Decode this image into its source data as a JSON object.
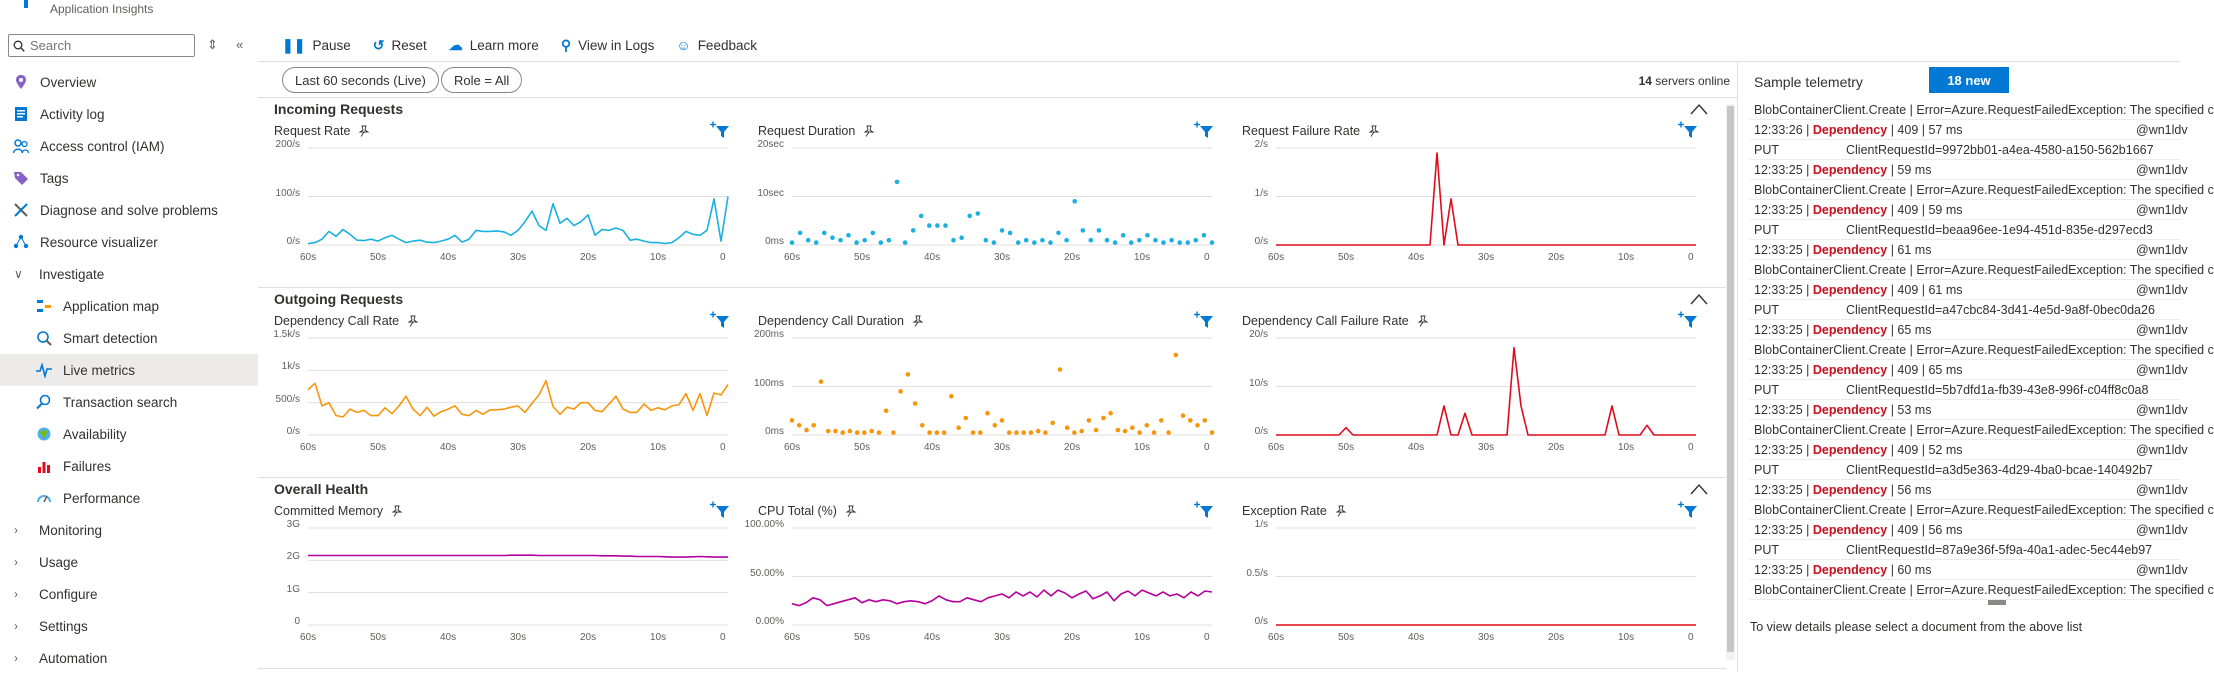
{
  "app": {
    "subtitle": "Application Insights"
  },
  "search": {
    "placeholder": "Search"
  },
  "nav": {
    "items": [
      {
        "label": "Overview"
      },
      {
        "label": "Activity log"
      },
      {
        "label": "Access control (IAM)"
      },
      {
        "label": "Tags"
      },
      {
        "label": "Diagnose and solve problems"
      },
      {
        "label": "Resource visualizer"
      },
      {
        "label": "Investigate"
      },
      {
        "label": "Application map"
      },
      {
        "label": "Smart detection"
      },
      {
        "label": "Live metrics"
      },
      {
        "label": "Transaction search"
      },
      {
        "label": "Availability"
      },
      {
        "label": "Failures"
      },
      {
        "label": "Performance"
      },
      {
        "label": "Monitoring"
      },
      {
        "label": "Usage"
      },
      {
        "label": "Configure"
      },
      {
        "label": "Settings"
      },
      {
        "label": "Automation"
      }
    ]
  },
  "toolbar": {
    "pause": "Pause",
    "reset": "Reset",
    "learn": "Learn more",
    "logs": "View in Logs",
    "feedback": "Feedback"
  },
  "filters": {
    "time": "Last 60 seconds (Live)",
    "role": "Role = All"
  },
  "servers": {
    "count": "14",
    "label": "servers online"
  },
  "sections": {
    "incoming": "Incoming Requests",
    "outgoing": "Outgoing Requests",
    "health": "Overall Health"
  },
  "x_ticks": [
    "60s",
    "50s",
    "40s",
    "30s",
    "20s",
    "10s",
    "0"
  ],
  "charts": {
    "request_rate": {
      "title": "Request Rate",
      "y_ticks": [
        "200/s",
        "100/s",
        "0/s"
      ]
    },
    "request_duration": {
      "title": "Request Duration",
      "y_ticks": [
        "20sec",
        "10sec",
        "0ms"
      ]
    },
    "request_failure_rate": {
      "title": "Request Failure Rate",
      "y_ticks": [
        "2/s",
        "1/s",
        "0/s"
      ]
    },
    "dependency_call_rate": {
      "title": "Dependency Call Rate",
      "y_ticks": [
        "1.5k/s",
        "1k/s",
        "500/s",
        "0/s"
      ]
    },
    "dependency_call_duration": {
      "title": "Dependency Call Duration",
      "y_ticks": [
        "200ms",
        "100ms",
        "0ms"
      ]
    },
    "dependency_failure_rate": {
      "title": "Dependency Call Failure Rate",
      "y_ticks": [
        "20/s",
        "10/s",
        "0/s"
      ]
    },
    "committed_memory": {
      "title": "Committed Memory",
      "y_ticks": [
        "3G",
        "2G",
        "1G",
        "0"
      ]
    },
    "cpu_total": {
      "title": "CPU Total (%)",
      "y_ticks": [
        "100.00%",
        "50.00%",
        "0.00%"
      ]
    },
    "exception_rate": {
      "title": "Exception Rate",
      "y_ticks": [
        "1/s",
        "0.5/s",
        "0/s"
      ]
    }
  },
  "colors": {
    "incoming": "#1ab0e0",
    "outgoing": "#f7960b",
    "failure": "#e00b1c",
    "health": "#b4009e",
    "accent": "#0078d4"
  },
  "chart_data": [
    {
      "type": "line",
      "title": "Request Rate",
      "ylim": [
        0,
        200
      ],
      "x": [
        60,
        59,
        58,
        57,
        56,
        55,
        54,
        53,
        52,
        51,
        50,
        49,
        48,
        47,
        46,
        45,
        44,
        43,
        42,
        41,
        40,
        39,
        38,
        37,
        36,
        35,
        34,
        33,
        32,
        31,
        30,
        29,
        28,
        27,
        26,
        25,
        24,
        23,
        22,
        21,
        20,
        19,
        18,
        17,
        16,
        15,
        14,
        13,
        12,
        11,
        10,
        9,
        8,
        7,
        6,
        5,
        4,
        3,
        2,
        1,
        0
      ],
      "series": [
        {
          "values": [
            3,
            5,
            12,
            28,
            18,
            32,
            22,
            10,
            9,
            12,
            8,
            15,
            20,
            12,
            5,
            8,
            10,
            6,
            5,
            8,
            12,
            20,
            6,
            12,
            30,
            28,
            28,
            29,
            27,
            20,
            30,
            48,
            70,
            40,
            30,
            85,
            45,
            55,
            40,
            48,
            62,
            20,
            32,
            30,
            35,
            30,
            10,
            12,
            8,
            5,
            5,
            3,
            5,
            15,
            28,
            22,
            20,
            30,
            95,
            8,
            100
          ]
        }
      ]
    },
    {
      "type": "scatter",
      "title": "Request Duration",
      "ylim": [
        0,
        20
      ],
      "series": [
        {
          "values": [
            0.5,
            2.5,
            1,
            0.5,
            2.5,
            1.5,
            1,
            2,
            0.5,
            1,
            2.5,
            0.5,
            1,
            13,
            0.5,
            3,
            6,
            4,
            4,
            4,
            1,
            1.5,
            6,
            6.5,
            1,
            0.5,
            3,
            2.5,
            0.5,
            1,
            0.5,
            1,
            0.5,
            2.5,
            1,
            9,
            3,
            1,
            3,
            1,
            0.5,
            2,
            0.5,
            1,
            2,
            1,
            0.5,
            1,
            0.5,
            0.5,
            1,
            2,
            0.5
          ]
        }
      ]
    },
    {
      "type": "line",
      "title": "Request Failure Rate",
      "ylim": [
        0,
        2
      ],
      "series": [
        {
          "values": [
            0,
            0,
            0,
            0,
            0,
            0,
            0,
            0,
            0,
            0,
            0,
            0,
            0,
            0,
            0,
            0,
            0,
            0,
            0,
            0,
            0,
            0,
            0,
            1.9,
            0,
            0.95,
            0,
            0,
            0,
            0,
            0,
            0,
            0,
            0,
            0,
            0,
            0,
            0,
            0,
            0,
            0,
            0,
            0,
            0,
            0,
            0,
            0,
            0,
            0,
            0,
            0,
            0,
            0,
            0,
            0,
            0,
            0,
            0,
            0,
            0,
            0
          ]
        }
      ]
    },
    {
      "type": "line",
      "title": "Dependency Call Rate",
      "ylim": [
        0,
        1500
      ],
      "series": [
        {
          "values": [
            700,
            800,
            450,
            500,
            300,
            280,
            400,
            350,
            380,
            300,
            300,
            420,
            330,
            450,
            600,
            400,
            300,
            430,
            290,
            360,
            400,
            450,
            320,
            300,
            380,
            320,
            390,
            390,
            400,
            430,
            450,
            350,
            490,
            620,
            840,
            440,
            320,
            430,
            400,
            500,
            500,
            380,
            360,
            480,
            600,
            400,
            350,
            350,
            480,
            380,
            420,
            390,
            450,
            470,
            640,
            380,
            640,
            300,
            650,
            620,
            780
          ]
        }
      ]
    },
    {
      "type": "scatter",
      "title": "Dependency Call Duration",
      "ylim": [
        0,
        200
      ],
      "series": [
        {
          "values": [
            30,
            20,
            10,
            20,
            110,
            8,
            8,
            5,
            8,
            5,
            5,
            8,
            5,
            50,
            5,
            90,
            125,
            65,
            20,
            5,
            5,
            5,
            80,
            15,
            35,
            5,
            5,
            45,
            20,
            30,
            5,
            5,
            5,
            5,
            8,
            5,
            25,
            135,
            15,
            5,
            8,
            30,
            10,
            35,
            45,
            10,
            8,
            15,
            5,
            20,
            5,
            30,
            5,
            165,
            40,
            30,
            20,
            30,
            5
          ]
        }
      ]
    },
    {
      "type": "line",
      "title": "Dependency Call Failure Rate",
      "ylim": [
        0,
        20
      ],
      "series": [
        {
          "values": [
            0,
            0,
            0,
            0,
            0,
            0,
            0,
            0,
            0,
            0,
            1.5,
            0,
            0,
            0,
            0,
            0,
            0,
            0,
            0,
            0,
            0,
            0,
            0,
            0,
            6,
            0,
            0,
            4.5,
            0,
            0,
            0,
            0,
            0,
            0,
            18,
            6,
            0,
            0,
            0,
            0,
            0,
            0,
            0,
            0,
            0,
            0,
            0,
            0,
            6,
            0,
            0,
            0,
            0,
            2,
            0,
            0,
            0,
            0,
            0,
            0,
            0
          ]
        }
      ]
    },
    {
      "type": "line",
      "title": "Committed Memory",
      "ylim": [
        0,
        3
      ],
      "series": [
        {
          "values": [
            2.15,
            2.15,
            2.15,
            2.15,
            2.15,
            2.15,
            2.15,
            2.15,
            2.15,
            2.15,
            2.15,
            2.15,
            2.15,
            2.15,
            2.15,
            2.15,
            2.15,
            2.15,
            2.15,
            2.15,
            2.15,
            2.15,
            2.15,
            2.15,
            2.15,
            2.15,
            2.15,
            2.15,
            2.15,
            2.16,
            2.16,
            2.16,
            2.16,
            2.15,
            2.15,
            2.15,
            2.15,
            2.15,
            2.15,
            2.15,
            2.15,
            2.15,
            2.14,
            2.14,
            2.14,
            2.13,
            2.13,
            2.12,
            2.12,
            2.12,
            2.12,
            2.11,
            2.1,
            2.1,
            2.1,
            2.11,
            2.12,
            2.11,
            2.1,
            2.1,
            2.1
          ]
        }
      ]
    },
    {
      "type": "line",
      "title": "CPU Total (%)",
      "ylim": [
        0,
        100
      ],
      "series": [
        {
          "values": [
            22,
            20,
            23,
            28,
            26,
            20,
            22,
            24,
            26,
            28,
            23,
            26,
            24,
            26,
            25,
            22,
            24,
            25,
            24,
            22,
            25,
            30,
            26,
            24,
            24,
            28,
            26,
            24,
            28,
            30,
            32,
            28,
            34,
            30,
            34,
            29,
            36,
            30,
            36,
            33,
            28,
            32,
            35,
            27,
            30,
            34,
            25,
            32,
            35,
            30,
            36,
            33,
            30,
            34,
            30,
            32,
            28,
            34,
            30,
            35,
            34
          ]
        }
      ]
    },
    {
      "type": "line",
      "title": "Exception Rate",
      "ylim": [
        0,
        1
      ],
      "series": [
        {
          "values": [
            0,
            0,
            0,
            0,
            0,
            0,
            0,
            0,
            0,
            0,
            0,
            0,
            0,
            0,
            0,
            0,
            0,
            0,
            0,
            0,
            0,
            0,
            0,
            0,
            0,
            0,
            0,
            0,
            0,
            0,
            0,
            0,
            0,
            0,
            0,
            0,
            0,
            0,
            0,
            0,
            0,
            0,
            0,
            0,
            0,
            0,
            0,
            0,
            0,
            0,
            0,
            0,
            0,
            0,
            0,
            0,
            0,
            0,
            0,
            0,
            0
          ]
        }
      ]
    }
  ],
  "telemetry": {
    "title": "Sample telemetry",
    "badge": "18 new",
    "rows": [
      {
        "kind": "cont",
        "text": "BlobContainerClient.Create | Error=Azure.RequestFailedException: The specified c"
      },
      {
        "kind": "dep",
        "time": "12:33:26 |",
        "type": "Dependency",
        "detail": "| 409 | 57 ms",
        "right": "@wn1ldv"
      },
      {
        "kind": "put",
        "verb": "PUT",
        "client": "ClientRequestId=9972bb01-a4ea-4580-a150-562b1667"
      },
      {
        "kind": "dep",
        "time": "12:33:25 |",
        "type": "Dependency",
        "detail": "| 59 ms",
        "right": "@wn1ldv"
      },
      {
        "kind": "cont",
        "text": "BlobContainerClient.Create | Error=Azure.RequestFailedException: The specified c"
      },
      {
        "kind": "dep",
        "time": "12:33:25 |",
        "type": "Dependency",
        "detail": "| 409 | 59 ms",
        "right": "@wn1ldv"
      },
      {
        "kind": "put",
        "verb": "PUT",
        "client": "ClientRequestId=beaa96ee-1e94-451d-835e-d297ecd3"
      },
      {
        "kind": "dep",
        "time": "12:33:25 |",
        "type": "Dependency",
        "detail": "| 61 ms",
        "right": "@wn1ldv"
      },
      {
        "kind": "cont",
        "text": "BlobContainerClient.Create | Error=Azure.RequestFailedException: The specified c"
      },
      {
        "kind": "dep",
        "time": "12:33:25 |",
        "type": "Dependency",
        "detail": "| 409 | 61 ms",
        "right": "@wn1ldv"
      },
      {
        "kind": "put",
        "verb": "PUT",
        "client": "ClientRequestId=a47cbc84-3d41-4e5d-9a8f-0bec0da26"
      },
      {
        "kind": "dep",
        "time": "12:33:25 |",
        "type": "Dependency",
        "detail": "| 65 ms",
        "right": "@wn1ldv"
      },
      {
        "kind": "cont",
        "text": "BlobContainerClient.Create | Error=Azure.RequestFailedException: The specified c"
      },
      {
        "kind": "dep",
        "time": "12:33:25 |",
        "type": "Dependency",
        "detail": "| 409 | 65 ms",
        "right": "@wn1ldv"
      },
      {
        "kind": "put",
        "verb": "PUT",
        "client": "ClientRequestId=5b7dfd1a-fb39-43e8-996f-c04ff8c0a8"
      },
      {
        "kind": "dep",
        "time": "12:33:25 |",
        "type": "Dependency",
        "detail": "| 53 ms",
        "right": "@wn1ldv"
      },
      {
        "kind": "cont",
        "text": "BlobContainerClient.Create | Error=Azure.RequestFailedException: The specified c"
      },
      {
        "kind": "dep",
        "time": "12:33:25 |",
        "type": "Dependency",
        "detail": "| 409 | 52 ms",
        "right": "@wn1ldv"
      },
      {
        "kind": "put",
        "verb": "PUT",
        "client": "ClientRequestId=a3d5e363-4d29-4ba0-bcae-140492b7"
      },
      {
        "kind": "dep",
        "time": "12:33:25 |",
        "type": "Dependency",
        "detail": "| 56 ms",
        "right": "@wn1ldv"
      },
      {
        "kind": "cont",
        "text": "BlobContainerClient.Create | Error=Azure.RequestFailedException: The specified c"
      },
      {
        "kind": "dep",
        "time": "12:33:25 |",
        "type": "Dependency",
        "detail": "| 409 | 56 ms",
        "right": "@wn1ldv"
      },
      {
        "kind": "put",
        "verb": "PUT",
        "client": "ClientRequestId=87a9e36f-5f9a-40a1-adec-5ec44eb97"
      },
      {
        "kind": "dep",
        "time": "12:33:25 |",
        "type": "Dependency",
        "detail": "| 60 ms",
        "right": "@wn1ldv"
      },
      {
        "kind": "cont",
        "text": "BlobContainerClient.Create | Error=Azure.RequestFailedException: The specified c"
      }
    ],
    "hint": "To view details please select a document from the above list"
  }
}
